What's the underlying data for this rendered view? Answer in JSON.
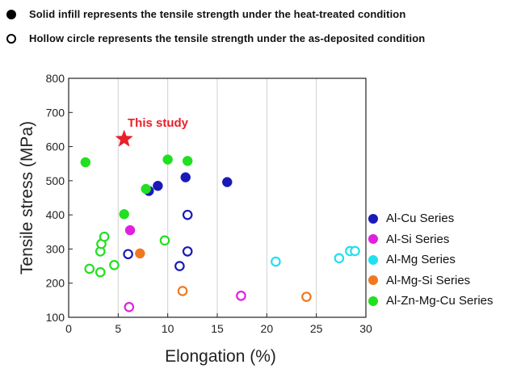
{
  "notes": {
    "solid": "Solid infill represents the tensile strength under the heat-treated condition",
    "hollow": "Hollow circle represents the tensile strength under the as-deposited condition"
  },
  "chart_data": {
    "type": "scatter",
    "xlabel": "Elongation (%)",
    "ylabel": "Tensile stress (MPa)",
    "xlim": [
      0,
      30
    ],
    "ylim": [
      100,
      800
    ],
    "xticks": [
      "0",
      "5",
      "10",
      "15",
      "20",
      "25",
      "30"
    ],
    "yticks": [
      "100",
      "200",
      "300",
      "400",
      "500",
      "600",
      "700",
      "800"
    ],
    "grid": "vertical",
    "legend_position": "right",
    "series": [
      {
        "name": "Al-Cu Series",
        "color": "#1a1ab8",
        "filled": [
          [
            8.1,
            470
          ],
          [
            9.0,
            485
          ],
          [
            11.8,
            510
          ],
          [
            16.0,
            496
          ]
        ],
        "hollow": [
          [
            6.0,
            285
          ],
          [
            11.2,
            250
          ],
          [
            12.0,
            293
          ],
          [
            12.0,
            400
          ]
        ]
      },
      {
        "name": "Al-Si Series",
        "color": "#e020e0",
        "filled": [
          [
            6.2,
            355
          ]
        ],
        "hollow": [
          [
            6.1,
            130
          ],
          [
            17.4,
            163
          ]
        ]
      },
      {
        "name": "Al-Mg Series",
        "color": "#20e0f0",
        "filled": [],
        "hollow": [
          [
            20.9,
            263
          ],
          [
            27.3,
            273
          ],
          [
            28.4,
            294
          ],
          [
            28.9,
            294
          ]
        ]
      },
      {
        "name": "Al-Mg-Si Series",
        "color": "#f07820",
        "filled": [
          [
            7.2,
            287
          ]
        ],
        "hollow": [
          [
            11.5,
            177
          ],
          [
            24.0,
            160
          ]
        ]
      },
      {
        "name": "Al-Zn-Mg-Cu Series",
        "color": "#20e020",
        "filled": [
          [
            1.7,
            554
          ],
          [
            5.6,
            402
          ],
          [
            7.8,
            476
          ],
          [
            10.0,
            562
          ],
          [
            12.0,
            558
          ]
        ],
        "hollow": [
          [
            2.1,
            242
          ],
          [
            3.2,
            232
          ],
          [
            3.2,
            293
          ],
          [
            3.3,
            315
          ],
          [
            3.6,
            336
          ],
          [
            4.6,
            253
          ],
          [
            9.7,
            325
          ]
        ]
      }
    ],
    "highlight": {
      "label": "This study",
      "x": 5.6,
      "y": 622,
      "color": "#e8202a"
    }
  }
}
